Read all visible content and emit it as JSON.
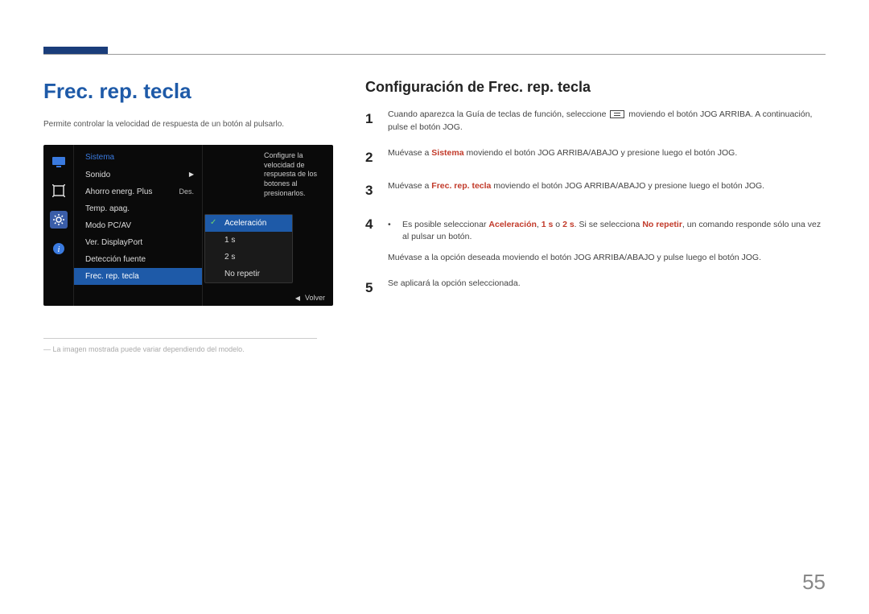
{
  "header": {
    "accent_color": "#1a3d7a"
  },
  "left": {
    "title": "Frec. rep. tecla",
    "intro": "Permite controlar la velocidad de respuesta de un botón al pulsarlo.",
    "footnote": "―  La imagen mostrada puede variar dependiendo del modelo."
  },
  "osd": {
    "menu_title": "Sistema",
    "items": [
      {
        "label": "Sonido",
        "has_sub": true
      },
      {
        "label": "Ahorro energ. Plus",
        "value": "Des."
      },
      {
        "label": "Temp. apag."
      },
      {
        "label": "Modo PC/AV"
      },
      {
        "label": "Ver. DisplayPort"
      },
      {
        "label": "Detección fuente"
      },
      {
        "label": "Frec. rep. tecla",
        "selected": true
      }
    ],
    "popup": [
      "Aceleración",
      "1 s",
      "2 s",
      "No repetir"
    ],
    "popup_selected_index": 0,
    "desc": "Configure la velocidad de respuesta de los botones al presionarlos.",
    "footer_label": "Volver",
    "background": "#0a0a0a",
    "accent": "#1e5aa8",
    "title_color": "#3a7adf"
  },
  "right": {
    "title": "Configuración de Frec. rep. tecla",
    "steps": [
      {
        "num": "1",
        "parts": [
          {
            "t": "Cuando aparezca la Guía de teclas de función, seleccione "
          },
          {
            "icon": "menu"
          },
          {
            "t": " moviendo el botón JOG ARRIBA. A continuación, pulse el botón JOG."
          }
        ]
      },
      {
        "num": "2",
        "parts": [
          {
            "t": "Muévase a "
          },
          {
            "t": "Sistema",
            "hl": true
          },
          {
            "t": " moviendo el botón JOG ARRIBA/ABAJO y presione luego el botón JOG."
          }
        ]
      },
      {
        "num": "3",
        "parts": [
          {
            "t": "Muévase a "
          },
          {
            "t": "Frec. rep. tecla",
            "hl": true
          },
          {
            "t": " moviendo el botón JOG ARRIBA/ABAJO y presione luego el botón JOG."
          }
        ]
      },
      {
        "num": "4",
        "bullets": [
          [
            {
              "t": "Es posible seleccionar "
            },
            {
              "t": "Aceleración",
              "hl": true
            },
            {
              "t": ", "
            },
            {
              "t": "1 s",
              "hl": true
            },
            {
              "t": " o "
            },
            {
              "t": "2 s",
              "hl": true
            },
            {
              "t": ". Si se selecciona "
            },
            {
              "t": "No repetir",
              "hl": true
            },
            {
              "t": ", un comando responde sólo una vez al pulsar un botón."
            }
          ]
        ],
        "after": [
          {
            "t": "Muévase a la opción deseada moviendo el botón JOG ARRIBA/ABAJO y pulse luego el botón JOG."
          }
        ]
      },
      {
        "num": "5",
        "parts": [
          {
            "t": "Se aplicará la opción seleccionada."
          }
        ]
      }
    ]
  },
  "page_number": "55"
}
